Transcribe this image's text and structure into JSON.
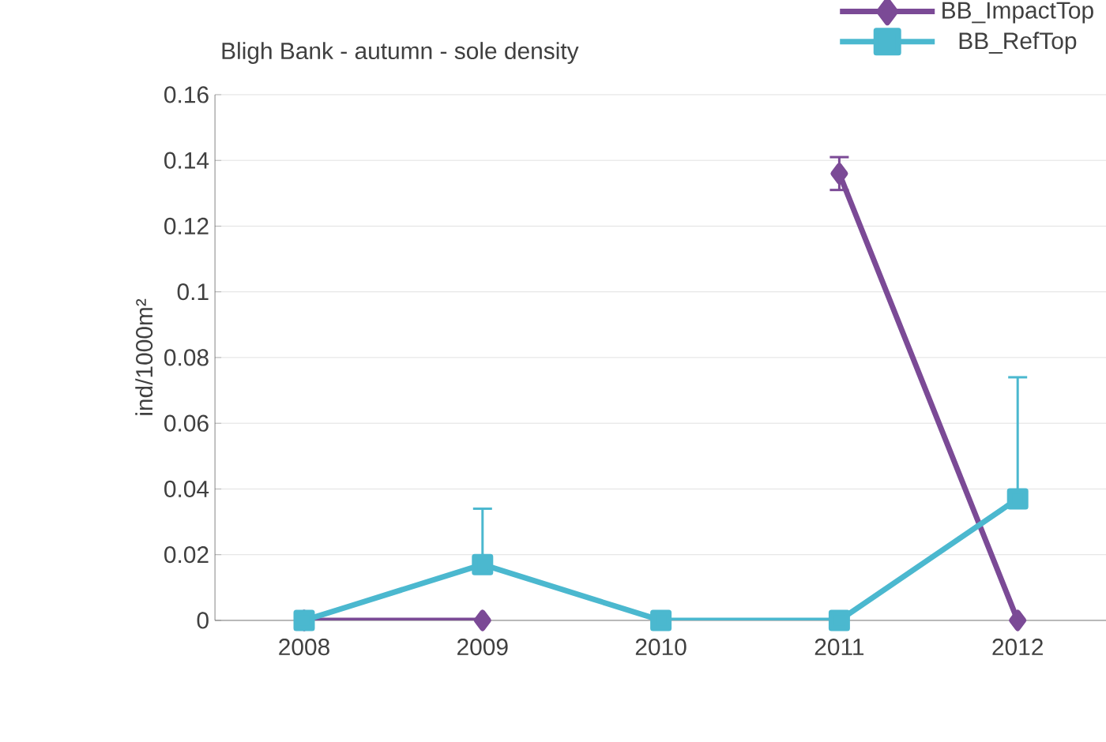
{
  "chart_data": {
    "type": "line",
    "title": "Bligh Bank - autumn - sole density",
    "ylabel": "ind/1000m²",
    "categories": [
      "2008",
      "2009",
      "2010",
      "2011",
      "2012"
    ],
    "series": [
      {
        "name": "BB_ImpactTop",
        "color": "#7b4a96",
        "marker": "diamond",
        "values": [
          0,
          0,
          null,
          0.136,
          0
        ],
        "errors": [
          null,
          null,
          null,
          [
            0.131,
            0.141
          ],
          null
        ]
      },
      {
        "name": "BB_RefTop",
        "color": "#4bb8cf",
        "marker": "square",
        "values": [
          0,
          0.017,
          0,
          0,
          0.037
        ],
        "errors": [
          null,
          [
            0.017,
            0.034
          ],
          null,
          null,
          [
            0.037,
            0.074
          ]
        ]
      }
    ],
    "ylim": [
      0,
      0.16
    ],
    "yticks": [
      0,
      0.02,
      0.04,
      0.06,
      0.08,
      0.1,
      0.12,
      0.14,
      0.16
    ],
    "grid": "y",
    "legend": "top right"
  }
}
